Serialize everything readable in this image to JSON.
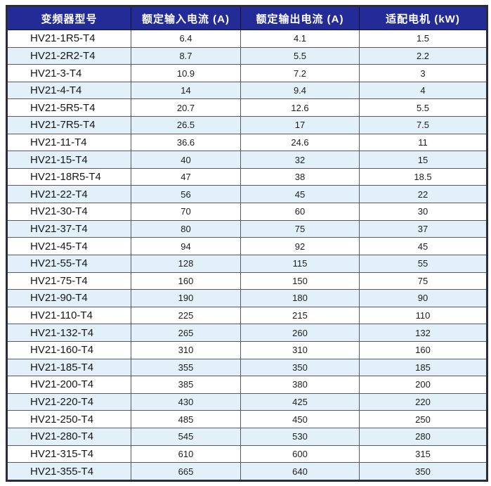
{
  "table": {
    "headers": [
      "变频器型号",
      "额定输入电流 (A)",
      "额定输出电流 (A)",
      "适配电机 (kW)"
    ],
    "rows": [
      {
        "model": "HV21-1R5-T4",
        "input_current": "6.4",
        "output_current": "4.1",
        "motor_kw": "1.5"
      },
      {
        "model": "HV21-2R2-T4",
        "input_current": "8.7",
        "output_current": "5.5",
        "motor_kw": "2.2"
      },
      {
        "model": "HV21-3-T4",
        "input_current": "10.9",
        "output_current": "7.2",
        "motor_kw": "3"
      },
      {
        "model": "HV21-4-T4",
        "input_current": "14",
        "output_current": "9.4",
        "motor_kw": "4"
      },
      {
        "model": "HV21-5R5-T4",
        "input_current": "20.7",
        "output_current": "12.6",
        "motor_kw": "5.5"
      },
      {
        "model": "HV21-7R5-T4",
        "input_current": "26.5",
        "output_current": "17",
        "motor_kw": "7.5"
      },
      {
        "model": "HV21-11-T4",
        "input_current": "36.6",
        "output_current": "24.6",
        "motor_kw": "11"
      },
      {
        "model": "HV21-15-T4",
        "input_current": "40",
        "output_current": "32",
        "motor_kw": "15"
      },
      {
        "model": "HV21-18R5-T4",
        "input_current": "47",
        "output_current": "38",
        "motor_kw": "18.5"
      },
      {
        "model": "HV21-22-T4",
        "input_current": "56",
        "output_current": "45",
        "motor_kw": "22"
      },
      {
        "model": "HV21-30-T4",
        "input_current": "70",
        "output_current": "60",
        "motor_kw": "30"
      },
      {
        "model": "HV21-37-T4",
        "input_current": "80",
        "output_current": "75",
        "motor_kw": "37"
      },
      {
        "model": "HV21-45-T4",
        "input_current": "94",
        "output_current": "92",
        "motor_kw": "45"
      },
      {
        "model": "HV21-55-T4",
        "input_current": "128",
        "output_current": "115",
        "motor_kw": "55"
      },
      {
        "model": "HV21-75-T4",
        "input_current": "160",
        "output_current": "150",
        "motor_kw": "75"
      },
      {
        "model": "HV21-90-T4",
        "input_current": "190",
        "output_current": "180",
        "motor_kw": "90"
      },
      {
        "model": "HV21-110-T4",
        "input_current": "225",
        "output_current": "215",
        "motor_kw": "110"
      },
      {
        "model": "HV21-132-T4",
        "input_current": "265",
        "output_current": "260",
        "motor_kw": "132"
      },
      {
        "model": "HV21-160-T4",
        "input_current": "310",
        "output_current": "310",
        "motor_kw": "160"
      },
      {
        "model": "HV21-185-T4",
        "input_current": "355",
        "output_current": "350",
        "motor_kw": "185"
      },
      {
        "model": "HV21-200-T4",
        "input_current": "385",
        "output_current": "380",
        "motor_kw": "200"
      },
      {
        "model": "HV21-220-T4",
        "input_current": "430",
        "output_current": "425",
        "motor_kw": "220"
      },
      {
        "model": "HV21-250-T4",
        "input_current": "485",
        "output_current": "450",
        "motor_kw": "250"
      },
      {
        "model": "HV21-280-T4",
        "input_current": "545",
        "output_current": "530",
        "motor_kw": "280"
      },
      {
        "model": "HV21-315-T4",
        "input_current": "610",
        "output_current": "600",
        "motor_kw": "315"
      },
      {
        "model": "HV21-355-T4",
        "input_current": "665",
        "output_current": "640",
        "motor_kw": "350"
      }
    ]
  },
  "colors": {
    "header_bg": "#232C96",
    "header_text": "#FFFFFF",
    "stripe_bg": "#E2F0F9",
    "row_bg": "#FFFFFF",
    "grid_line": "#5A5A5E",
    "outer_border": "#2B2B3A",
    "body_text": "#1D1D1D"
  }
}
